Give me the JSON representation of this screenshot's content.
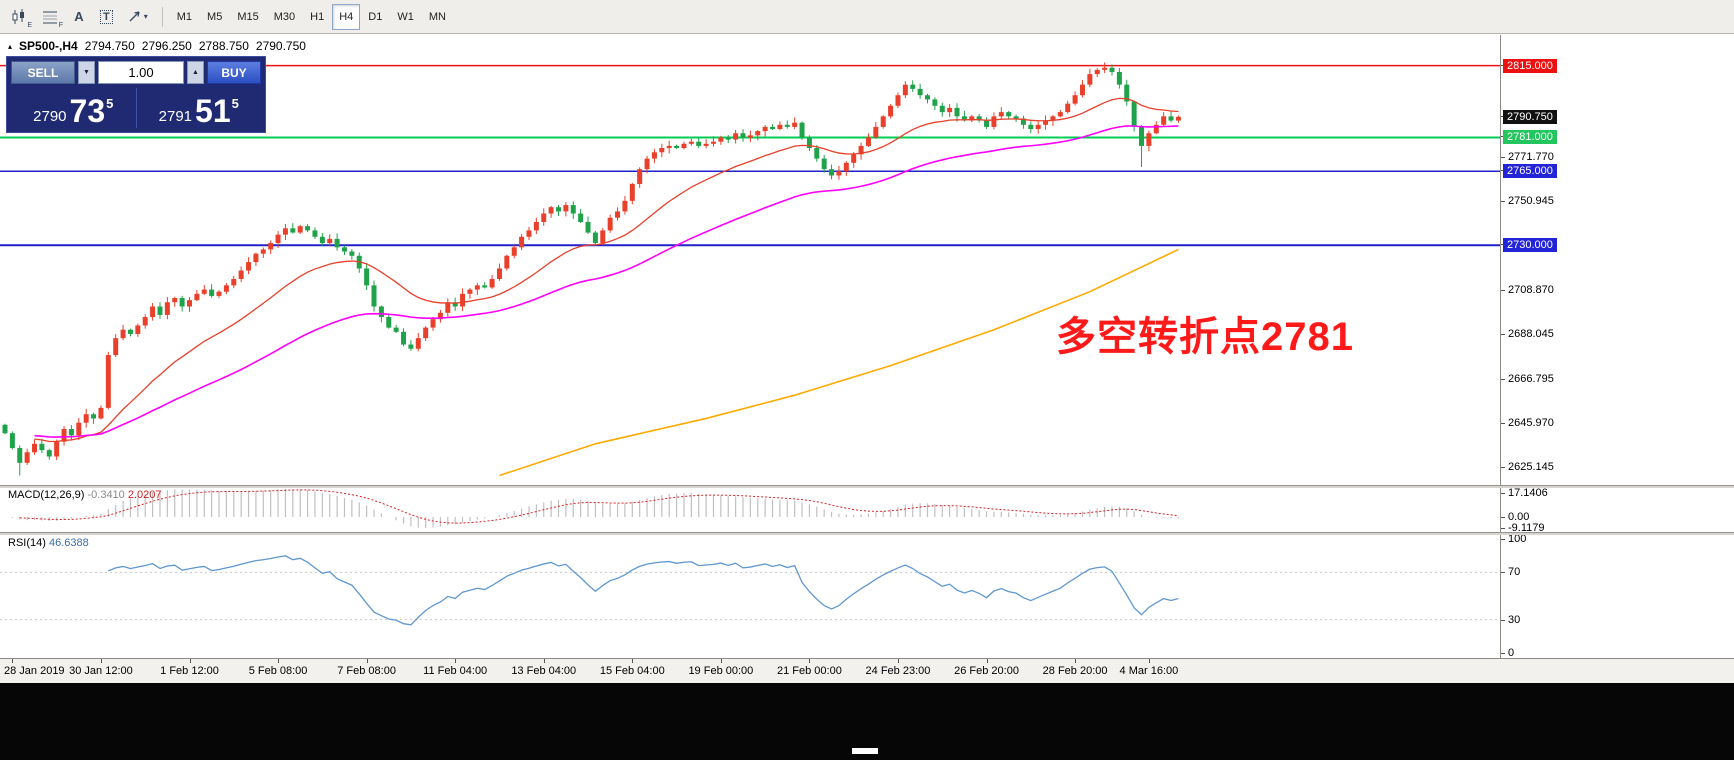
{
  "icons": {
    "collapse": "▴",
    "caret_down": "▼",
    "caret_up": "▲",
    "dropdown": "▾"
  },
  "toolbar": {
    "tools": [
      {
        "name": "candlesticks-tool",
        "sub": "E"
      },
      {
        "name": "fibonacci-tool",
        "sub": "F"
      },
      {
        "name": "text-tool",
        "label": "A"
      },
      {
        "name": "text-label-tool",
        "label": "T",
        "boxed": true
      },
      {
        "name": "arrows-tool",
        "dropdown": true
      }
    ],
    "timeframes": [
      "M1",
      "M5",
      "M15",
      "M30",
      "H1",
      "H4",
      "D1",
      "W1",
      "MN"
    ],
    "active_timeframe": "H4"
  },
  "quote_header": {
    "symbol_period": "SP500-,H4",
    "open": "2794.750",
    "high": "2796.250",
    "low": "2788.750",
    "close": "2790.750"
  },
  "trade_panel": {
    "sell_label": "SELL",
    "buy_label": "BUY",
    "volume": "1.00",
    "sell_price": {
      "big": "2790",
      "large": "73",
      "sup": "5"
    },
    "buy_price": {
      "big": "2791",
      "large": "51",
      "sup": "5"
    }
  },
  "annotation": {
    "text": "多空转折点2781",
    "color": "#ff1a1a"
  },
  "price_axis": {
    "labels": [
      "2771.770",
      "2750.945",
      "2708.870",
      "2688.045",
      "2666.795",
      "2645.970",
      "2625.145"
    ],
    "badges": [
      {
        "text": "2815.000",
        "price": 2815.0,
        "bg": "#ee1111",
        "fg": "#ffffff"
      },
      {
        "text": "2790.750",
        "price": 2790.75,
        "bg": "#111111",
        "fg": "#ffffff"
      },
      {
        "text": "2781.000",
        "price": 2781.0,
        "bg": "#22c55e",
        "fg": "#ffffff"
      },
      {
        "text": "2765.000",
        "price": 2765.0,
        "bg": "#2323d8",
        "fg": "#ffffff"
      },
      {
        "text": "2730.000",
        "price": 2730.0,
        "bg": "#2323d8",
        "fg": "#ffffff"
      }
    ]
  },
  "macd_panel": {
    "name": "MACD(12,26,9)",
    "main_value": "-0.3410",
    "signal_value": "2.0207",
    "axis": {
      "max": "17.1406",
      "zero": "0.00",
      "min": "-9.1179"
    }
  },
  "rsi_panel": {
    "name": "RSI(14)",
    "value": "46.6388",
    "axis": [
      "100",
      "70",
      "30",
      "0"
    ],
    "levels": [
      70,
      30
    ]
  },
  "time_axis": {
    "labels": [
      {
        "i": 1,
        "t": "28 Jan 2019"
      },
      {
        "i": 13,
        "t": "30 Jan 12:00"
      },
      {
        "i": 25,
        "t": "1 Feb 12:00"
      },
      {
        "i": 37,
        "t": "5 Feb 08:00"
      },
      {
        "i": 49,
        "t": "7 Feb 08:00"
      },
      {
        "i": 61,
        "t": "11 Feb 04:00"
      },
      {
        "i": 73,
        "t": "13 Feb 04:00"
      },
      {
        "i": 85,
        "t": "15 Feb 04:00"
      },
      {
        "i": 97,
        "t": "19 Feb 00:00"
      },
      {
        "i": 109,
        "t": "21 Feb 00:00"
      },
      {
        "i": 121,
        "t": "24 Feb 23:00"
      },
      {
        "i": 133,
        "t": "26 Feb 20:00"
      },
      {
        "i": 145,
        "t": "28 Feb 20:00"
      },
      {
        "i": 155,
        "t": "4 Mar 16:00"
      }
    ]
  },
  "chart_data": {
    "type": "candlestick",
    "symbol": "SP500-",
    "timeframe": "H4",
    "last_bar": {
      "open": 2794.75,
      "high": 2796.25,
      "low": 2788.75,
      "close": 2790.75
    },
    "price_range": [
      2616.5,
      2829.5
    ],
    "first_open": 2645,
    "closes": [
      2641,
      2634,
      2627,
      2632,
      2636,
      2633,
      2630,
      2637,
      2643,
      2640,
      2646,
      2650,
      2648,
      2653,
      2678,
      2686,
      2690,
      2688,
      2692,
      2696,
      2701,
      2697,
      2703,
      2705,
      2701,
      2704,
      2707,
      2709,
      2706,
      2708,
      2711,
      2714,
      2718,
      2722,
      2726,
      2728,
      2731,
      2735,
      2738,
      2736,
      2739,
      2737,
      2734,
      2731,
      2733,
      2729,
      2727,
      2725,
      2719,
      2711,
      2701,
      2696,
      2691,
      2689,
      2683,
      2681,
      2686,
      2691,
      2695,
      2698,
      2703,
      2701,
      2707,
      2709,
      2711,
      2710,
      2714,
      2719,
      2725,
      2729,
      2734,
      2737,
      2741,
      2745,
      2748,
      2746,
      2749,
      2745,
      2741,
      2736,
      2731,
      2737,
      2743,
      2746,
      2751,
      2759,
      2766,
      2771,
      2774,
      2776,
      2777,
      2776,
      2778,
      2779,
      2777,
      2778,
      2779,
      2781,
      2780,
      2783,
      2781,
      2782,
      2784,
      2786,
      2785,
      2787,
      2786,
      2788,
      2781,
      2776,
      2771,
      2766,
      2763,
      2765,
      2769,
      2773,
      2777,
      2781,
      2786,
      2791,
      2796,
      2801,
      2806,
      2804,
      2801,
      2799,
      2796,
      2793,
      2795,
      2791,
      2789,
      2791,
      2789,
      2786,
      2791,
      2793,
      2791,
      2790,
      2787,
      2785,
      2787,
      2789,
      2791,
      2793,
      2797,
      2801,
      2806,
      2811,
      2813,
      2814,
      2812,
      2806,
      2798,
      2786,
      2777,
      2783,
      2787,
      2791,
      2789,
      2790.75
    ],
    "wick_overrides": [
      {
        "i": 2,
        "low": 2621
      },
      {
        "i": 149,
        "high": 2816.5
      },
      {
        "i": 154,
        "low": 2767
      }
    ],
    "hlines": [
      {
        "price": 2815,
        "color": "#ee1111",
        "width": 1.5
      },
      {
        "price": 2781,
        "color": "#00cc55",
        "width": 2
      },
      {
        "price": 2765,
        "color": "#2222cc",
        "width": 1.5
      },
      {
        "price": 2730,
        "color": "#2222cc",
        "width": 2
      }
    ],
    "ma_slow_anchors": [
      {
        "i": 67,
        "v": 2621
      },
      {
        "i": 80,
        "v": 2636
      },
      {
        "i": 95,
        "v": 2648
      },
      {
        "i": 107,
        "v": 2659
      },
      {
        "i": 120,
        "v": 2673
      },
      {
        "i": 134,
        "v": 2690
      },
      {
        "i": 147,
        "v": 2708
      },
      {
        "i": 159,
        "v": 2728
      }
    ],
    "indicators": {
      "macd": {
        "fast": 12,
        "slow": 26,
        "signal": 9
      },
      "rsi": {
        "period": 14
      },
      "ma_fast_period": 21,
      "ma_mid_period": 56
    },
    "colors": {
      "up": "#e8402a",
      "down": "#1fa24a",
      "ma_fast": "#e8402a",
      "ma_mid": "#ff00ff",
      "ma_slow": "#ffaa00",
      "macd_hist": "#c0c0c0",
      "macd_signal": "#e02020",
      "rsi": "#5f97d0"
    }
  }
}
